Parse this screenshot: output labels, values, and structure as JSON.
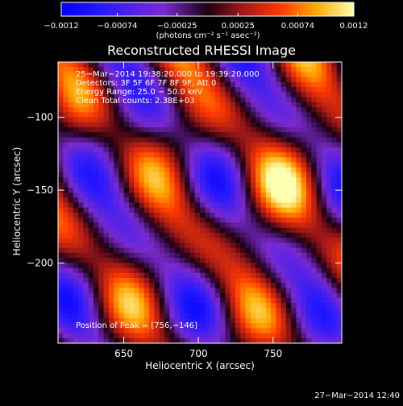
{
  "chart_data": {
    "type": "heatmap",
    "title": "Reconstructed RHESSI Image",
    "xlabel": "Heliocentric X (arcsec)",
    "ylabel": "Heliocentric Y (arcsec)",
    "xlim": [
      606,
      796
    ],
    "ylim": [
      -255,
      -62
    ],
    "x_ticks": [
      650,
      700,
      750
    ],
    "x_tick_labels": [
      "650",
      "700",
      "750"
    ],
    "y_ticks": [
      -100,
      -150,
      -200
    ],
    "y_tick_labels": [
      "−100",
      "−150",
      "−200"
    ],
    "colorbar": {
      "range": [
        -0.0012,
        0.0012
      ],
      "ticks": [
        -0.0012,
        -0.00074,
        -0.00025,
        0.00025,
        0.00074,
        0.0012
      ],
      "tick_labels": [
        "−0.0012",
        "−0.00074",
        "−0.00025",
        "0.00025",
        "0.00074",
        "0.0012"
      ],
      "label": "(photons cm⁻² s⁻¹ asec⁻²)"
    },
    "annotations": [
      "25−Mar−2014 19:38:20.000 to 19:39:20.000",
      "Detectors: 3F 5F 6F 7F 8F 9F, Att 0",
      "Energy Range: 25.0 − 50.0 keV",
      "Clean    Total counts: 2.38E+03"
    ],
    "peak_annotation": "Position of Peak = [756,−146]",
    "peak_position": [
      756,
      -146
    ],
    "grid": false,
    "colors": {
      "background": "#000000",
      "foreground": "#ffffff"
    }
  },
  "footer": {
    "timestamp": "27−Mar−2014 12:40"
  }
}
